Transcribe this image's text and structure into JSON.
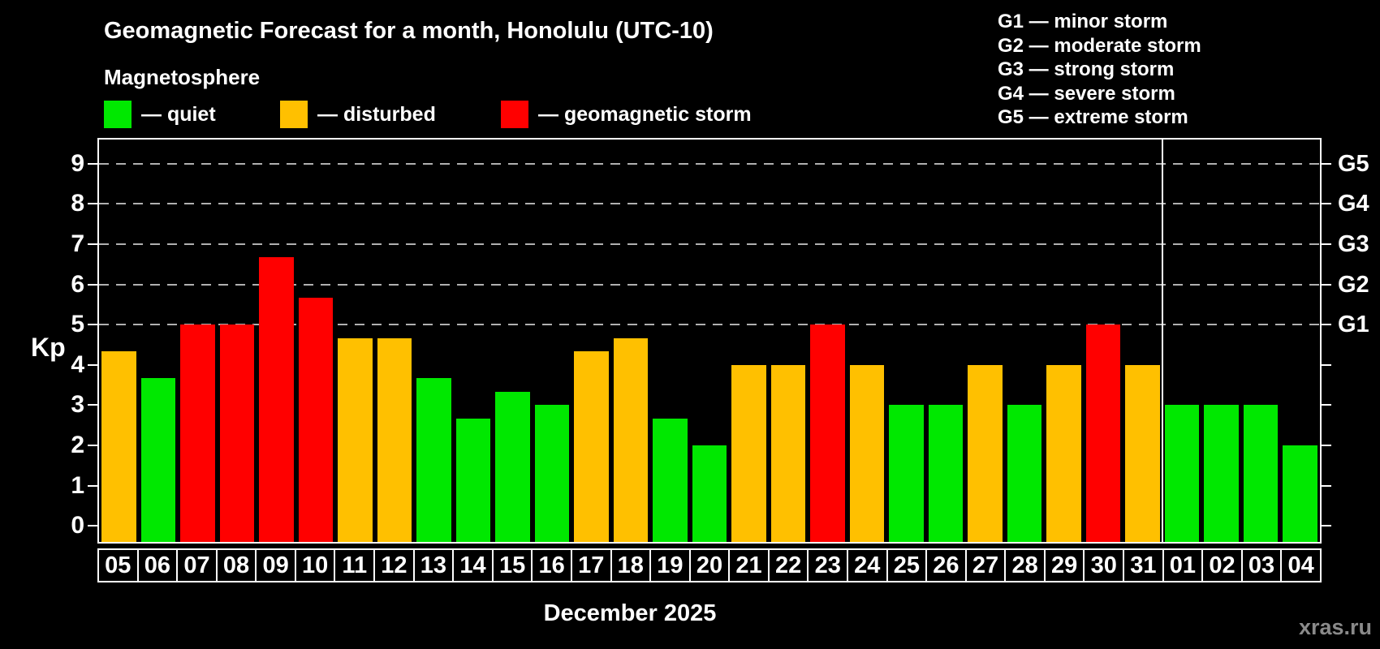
{
  "page": {
    "title": "Geomagnetic Forecast for a month, Honolulu (UTC-10)",
    "subtitle": "Magnetosphere",
    "month_label": "December 2025",
    "watermark": "xras.ru"
  },
  "legend": {
    "items": [
      {
        "id": "quiet",
        "label": "— quiet"
      },
      {
        "id": "disturbed",
        "label": "— disturbed"
      },
      {
        "id": "storm",
        "label": "— geomagnetic storm"
      }
    ]
  },
  "g_legend": {
    "lines": [
      "G1 — minor storm",
      "G2 — moderate storm",
      "G3 — strong storm",
      "G4 — severe storm",
      "G5 — extreme storm"
    ]
  },
  "chart_data": {
    "type": "bar",
    "title": "Geomagnetic Forecast for a month, Honolulu (UTC-10)",
    "subtitle": "Magnetosphere",
    "ylabel": "Kp",
    "xlabel": "December 2025",
    "ylim": [
      -0.4,
      9.6
    ],
    "yticks": [
      0,
      1,
      2,
      3,
      4,
      5,
      6,
      7,
      8,
      9
    ],
    "grid_levels": [
      5,
      6,
      7,
      8,
      9
    ],
    "grid_style": "dashed-horizontal",
    "legend_position": "top-left",
    "right_axis": {
      "labels": [
        "G1",
        "G2",
        "G3",
        "G4",
        "G5"
      ],
      "levels": [
        5,
        6,
        7,
        8,
        9
      ],
      "tick_levels": [
        0,
        1,
        2,
        3,
        4,
        5,
        6,
        7,
        8,
        9
      ]
    },
    "colors": {
      "quiet": "#00e800",
      "disturbed": "#ffc000",
      "storm": "#ff0000",
      "background": "#000000",
      "axis": "#ffffff",
      "grid": "#b0b0b0"
    },
    "categories": [
      "05",
      "06",
      "07",
      "08",
      "09",
      "10",
      "11",
      "12",
      "13",
      "14",
      "15",
      "16",
      "17",
      "18",
      "19",
      "20",
      "21",
      "22",
      "23",
      "24",
      "25",
      "26",
      "27",
      "28",
      "29",
      "30",
      "31",
      "01",
      "02",
      "03",
      "04"
    ],
    "values": [
      4.33,
      3.67,
      5,
      5,
      6.67,
      5.67,
      4.67,
      4.67,
      3.67,
      2.67,
      3.33,
      3,
      4.33,
      4.67,
      2.67,
      2,
      4,
      4,
      5,
      4,
      3,
      3,
      4,
      3,
      4,
      5,
      4,
      3,
      3,
      3,
      2
    ],
    "statuses": [
      "disturbed",
      "quiet",
      "storm",
      "storm",
      "storm",
      "storm",
      "disturbed",
      "disturbed",
      "quiet",
      "quiet",
      "quiet",
      "quiet",
      "disturbed",
      "disturbed",
      "quiet",
      "quiet",
      "disturbed",
      "disturbed",
      "storm",
      "disturbed",
      "quiet",
      "quiet",
      "disturbed",
      "quiet",
      "disturbed",
      "storm",
      "disturbed",
      "quiet",
      "quiet",
      "quiet",
      "quiet"
    ],
    "month_separator_after_index": 26
  }
}
